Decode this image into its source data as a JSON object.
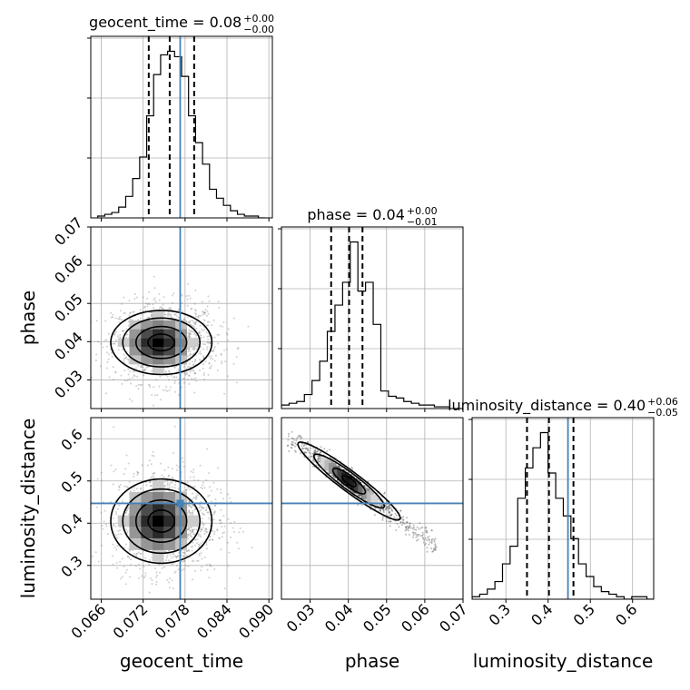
{
  "chart_data": {
    "type": "corner",
    "parameters": [
      "geocent_time",
      "phase",
      "luminosity_distance"
    ],
    "titles": [
      {
        "param": "geocent_time",
        "main": "geocent_time = 0.08",
        "upper": "+0.00",
        "lower": "−0.00"
      },
      {
        "param": "phase",
        "main": "phase = 0.04",
        "upper": "+0.00",
        "lower": "−0.01"
      },
      {
        "param": "luminosity_distance",
        "main": "luminosity_distance = 0.40",
        "upper": "+0.06",
        "lower": "−0.05"
      }
    ],
    "axes": {
      "geocent_time": {
        "range": [
          0.0645,
          0.0905
        ],
        "ticks": [
          0.066,
          0.072,
          0.078,
          0.084,
          0.09
        ],
        "tick_labels": [
          "0.066",
          "0.072",
          "0.078",
          "0.084",
          "0.090"
        ]
      },
      "phase": {
        "range": [
          0.0225,
          0.07
        ],
        "ticks": [
          0.03,
          0.04,
          0.05,
          0.06,
          0.07
        ],
        "tick_labels": [
          "0.03",
          "0.04",
          "0.05",
          "0.06",
          "0.07"
        ]
      },
      "luminosity_distance": {
        "range": [
          0.22,
          0.65
        ],
        "ticks": [
          0.3,
          0.4,
          0.5,
          0.6
        ],
        "tick_labels": [
          "0.3",
          "0.4",
          "0.5",
          "0.6"
        ]
      }
    },
    "truths": {
      "geocent_time": 0.0773,
      "phase": null,
      "luminosity_distance": 0.447
    },
    "quantiles": {
      "geocent_time": [
        0.0728,
        0.0758,
        0.0793
      ],
      "phase": [
        0.0355,
        0.0402,
        0.0437
      ],
      "luminosity_distance": [
        0.35,
        0.402,
        0.46
      ]
    },
    "histograms": {
      "geocent_time": {
        "edges_start": 0.0655,
        "bin_width": 0.001,
        "counts": [
          1,
          2,
          3,
          6,
          12,
          22,
          34,
          57,
          80,
          91,
          93,
          90,
          79,
          57,
          42,
          30,
          16,
          11,
          7,
          4,
          2,
          1,
          1,
          0
        ]
      },
      "phase": {
        "edges_start": 0.0225,
        "bin_width": 0.002,
        "counts": [
          2,
          3,
          4,
          8,
          16,
          27,
          44,
          59,
          72,
          95,
          67,
          72,
          48,
          10,
          7,
          6,
          4,
          3,
          2,
          2,
          1,
          1,
          0,
          0
        ]
      },
      "luminosity_distance": {
        "edges_start": 0.22,
        "bin_width": 0.018,
        "counts": [
          1,
          2,
          4,
          7,
          14,
          21,
          40,
          52,
          60,
          66,
          50,
          40,
          33,
          24,
          14,
          9,
          5,
          3,
          2,
          1,
          0,
          1,
          1,
          0
        ]
      }
    },
    "grid": true,
    "legend": "none"
  }
}
